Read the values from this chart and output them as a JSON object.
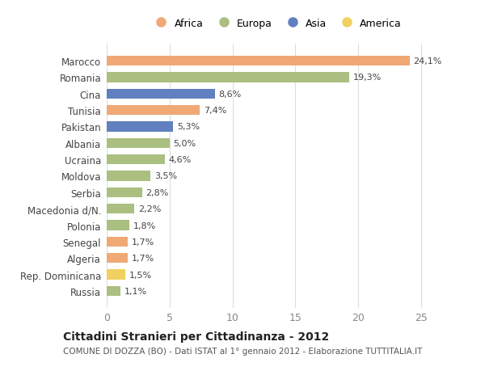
{
  "categories": [
    "Marocco",
    "Romania",
    "Cina",
    "Tunisia",
    "Pakistan",
    "Albania",
    "Ucraina",
    "Moldova",
    "Serbia",
    "Macedonia d/N.",
    "Polonia",
    "Senegal",
    "Algeria",
    "Rep. Dominicana",
    "Russia"
  ],
  "values": [
    24.1,
    19.3,
    8.6,
    7.4,
    5.3,
    5.0,
    4.6,
    3.5,
    2.8,
    2.2,
    1.8,
    1.7,
    1.7,
    1.5,
    1.1
  ],
  "labels": [
    "24,1%",
    "19,3%",
    "8,6%",
    "7,4%",
    "5,3%",
    "5,0%",
    "4,6%",
    "3,5%",
    "2,8%",
    "2,2%",
    "1,8%",
    "1,7%",
    "1,7%",
    "1,5%",
    "1,1%"
  ],
  "continents": [
    "Africa",
    "Europa",
    "Asia",
    "Africa",
    "Asia",
    "Europa",
    "Europa",
    "Europa",
    "Europa",
    "Europa",
    "Europa",
    "Africa",
    "Africa",
    "America",
    "Europa"
  ],
  "colors": {
    "Africa": "#F0A875",
    "Europa": "#AABF80",
    "Asia": "#6080C0",
    "America": "#F0D060"
  },
  "legend_order": [
    "Africa",
    "Europa",
    "Asia",
    "America"
  ],
  "title": "Cittadini Stranieri per Cittadinanza - 2012",
  "subtitle": "COMUNE DI DOZZA (BO) - Dati ISTAT al 1° gennaio 2012 - Elaborazione TUTTITALIA.IT",
  "xlim": [
    0,
    27
  ],
  "xticks": [
    0,
    5,
    10,
    15,
    20,
    25
  ],
  "background_color": "#ffffff",
  "grid_color": "#dddddd",
  "bar_height": 0.6
}
